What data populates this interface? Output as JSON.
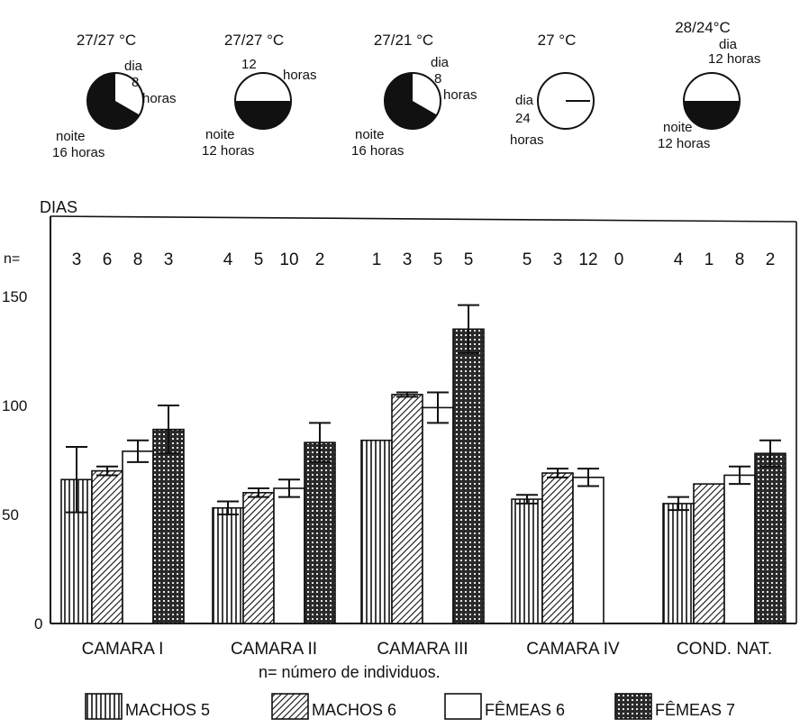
{
  "photoperiod_panels": [
    {
      "temp": "27/27 °C",
      "day_label": "dia",
      "day_hours": "8",
      "day_unit": "horas",
      "night_label": "noite",
      "night_hours": "16 horas",
      "dark_fraction": 0.667
    },
    {
      "temp": "27/27 °C",
      "day_label": "",
      "day_hours": "12",
      "day_unit": "horas",
      "night_label": "noite",
      "night_hours": "12 horas",
      "dark_fraction": 0.5
    },
    {
      "temp": "27/21 °C",
      "day_label": "dia",
      "day_hours": "8",
      "day_unit": "horas",
      "night_label": "noite",
      "night_hours": "16 horas",
      "dark_fraction": 0.667
    },
    {
      "temp": "27 °C",
      "day_label": "dia",
      "day_hours": "24",
      "day_unit": "horas",
      "night_label": "",
      "night_hours": "",
      "dark_fraction": 0
    },
    {
      "temp": "28/24°C",
      "day_label": "dia",
      "day_hours": "12 horas",
      "day_unit": "",
      "night_label": "noite",
      "night_hours": "12 horas",
      "dark_fraction": 0.5
    }
  ],
  "n_label": "n=",
  "n_values": [
    "3",
    "6",
    "8",
    "3",
    "4",
    "5",
    "10",
    "2",
    "1",
    "3",
    "5",
    "5",
    "5",
    "3",
    "12",
    "0",
    "4",
    "1",
    "8",
    "2"
  ],
  "footnote": "n= número de individuos.",
  "chart_data": {
    "type": "bar",
    "ylabel": "DIAS",
    "ylim": [
      0,
      160
    ],
    "yticks": [
      0,
      50,
      100,
      150
    ],
    "categories": [
      "CAMARA I",
      "CAMARA II",
      "CAMARA III",
      "CAMARA IV",
      "COND. NAT."
    ],
    "series": [
      {
        "name": "MACHOS 5",
        "pattern": "vertical-lines",
        "values": [
          66,
          53,
          84,
          57,
          55
        ],
        "errors": [
          15,
          3,
          null,
          2,
          3
        ]
      },
      {
        "name": "MACHOS 6",
        "pattern": "diagonal-lines",
        "values": [
          70,
          60,
          105,
          69,
          64
        ],
        "errors": [
          2,
          2,
          1,
          2,
          null
        ]
      },
      {
        "name": "FÊMEAS 6",
        "pattern": "blank",
        "values": [
          79,
          62,
          99,
          67,
          68
        ],
        "errors": [
          5,
          4,
          7,
          4,
          4
        ]
      },
      {
        "name": "FÊMEAS 7",
        "pattern": "crosshatch",
        "values": [
          89,
          83,
          135,
          0,
          78
        ],
        "errors": [
          11,
          9,
          11,
          null,
          6
        ]
      }
    ],
    "grid": false,
    "legend_position": "bottom"
  }
}
